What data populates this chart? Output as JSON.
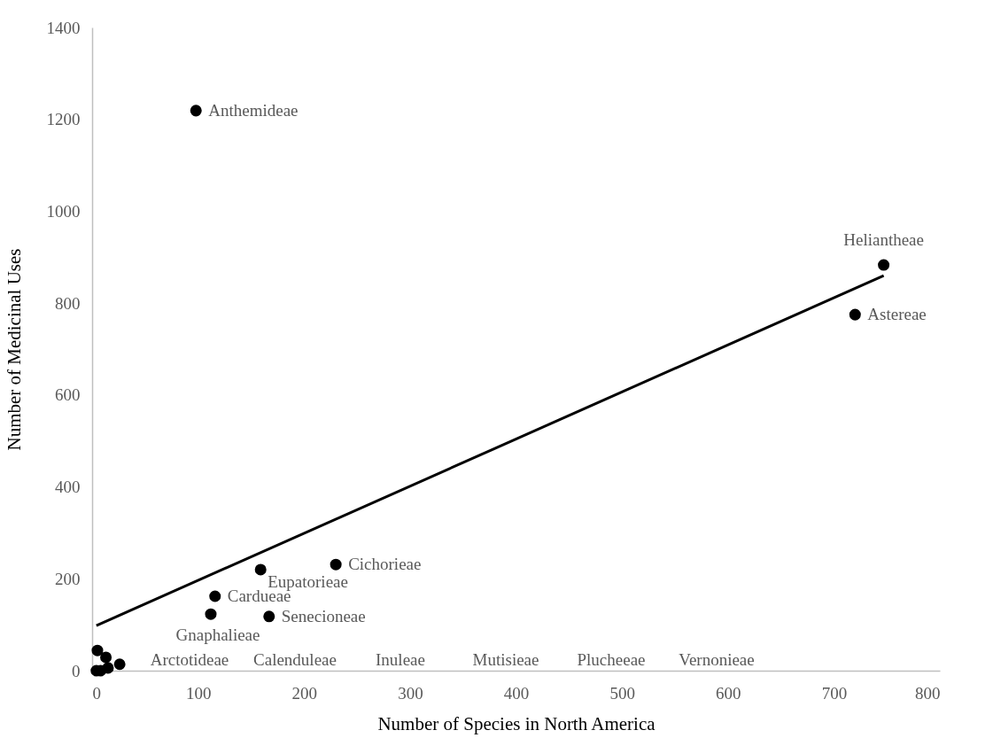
{
  "chart_data": {
    "type": "scatter",
    "xlabel": "Number of Species in North America",
    "ylabel": "Number of Medicinal Uses",
    "xlim": [
      0,
      800
    ],
    "ylim": [
      0,
      1400
    ],
    "xticks": [
      0,
      100,
      200,
      300,
      400,
      500,
      600,
      700,
      800
    ],
    "yticks": [
      0,
      200,
      400,
      600,
      800,
      1000,
      1200,
      1400
    ],
    "grid": false,
    "series": [
      {
        "marker": "circle",
        "color": "#000000",
        "x": [
          98,
          747,
          720,
          230,
          159,
          116,
          112,
          167,
          5,
          13,
          26,
          15,
          4,
          8
        ],
        "values": [
          1219,
          883,
          775,
          231,
          220,
          162,
          123,
          118,
          44,
          29,
          14,
          6,
          0,
          0
        ]
      },
      {
        "type": "line",
        "color": "#000000",
        "line_style": "solid",
        "x": [
          4,
          747
        ],
        "values": [
          98,
          860
        ]
      }
    ],
    "annotations": [
      {
        "text": "Anthemideae",
        "x": 98,
        "y": 1219
      },
      {
        "text": "Heliantheae",
        "x": 747,
        "y": 883
      },
      {
        "text": "Astereae",
        "x": 720,
        "y": 775
      },
      {
        "text": "Cichorieae",
        "x": 230,
        "y": 231
      },
      {
        "text": "Eupatorieae",
        "x": 159,
        "y": 220
      },
      {
        "text": "Cardueae",
        "x": 116,
        "y": 162
      },
      {
        "text": "Gnaphalieae",
        "x": 112,
        "y": 123
      },
      {
        "text": "Senecioneae",
        "x": 167,
        "y": 118
      },
      "Arctotideae",
      "Calenduleae",
      "Inuleae",
      "Mutisieae",
      "Plucheeae",
      "Vernonieae"
    ]
  }
}
